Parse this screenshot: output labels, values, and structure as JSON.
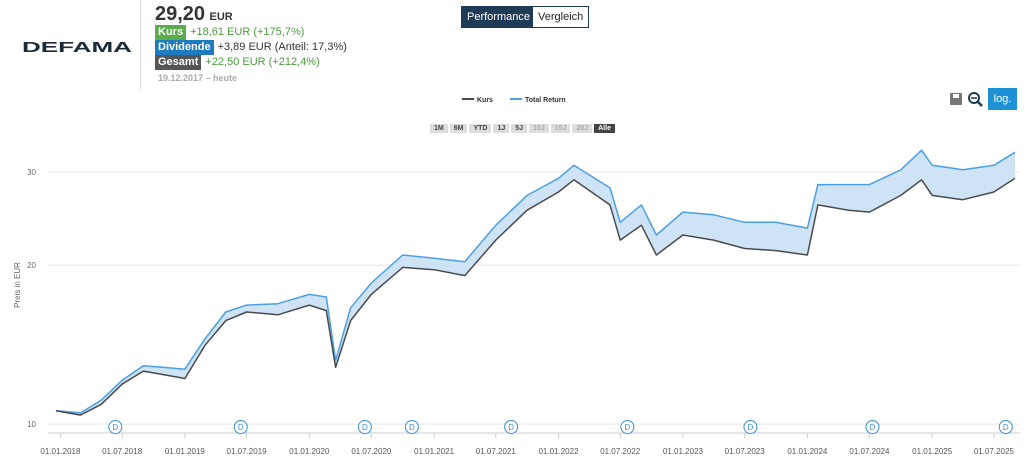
{
  "header": {
    "logo": "DEFAMA",
    "price": "29,20",
    "currency": "EUR",
    "rows": [
      {
        "label": "Kurs",
        "value": "+18,61 EUR (+175,7%)"
      },
      {
        "label": "Dividende",
        "value": "+3,89 EUR (Anteil: 17,3%)"
      },
      {
        "label": "Gesamt",
        "value": "+22,50 EUR (+212,4%)"
      }
    ],
    "period": "19.12.2017 – heute"
  },
  "tabs": [
    "Performance",
    "Vergleich"
  ],
  "ranges": [
    "1M",
    "6M",
    "YTD",
    "1J",
    "5J",
    "10J",
    "15J",
    "20J",
    "Alle"
  ],
  "scale_button": "log.",
  "chart_data": {
    "type": "line",
    "y_label": "Preis in EUR",
    "log_scale": true,
    "grid": true,
    "legend": "top",
    "x": [
      "19.12.2017",
      "01.03.2018",
      "01.05.2018",
      "01.07.2018",
      "01.09.2018",
      "01.11.2018",
      "01.01.2019",
      "01.03.2019",
      "01.05.2019",
      "01.07.2019",
      "01.10.2019",
      "01.01.2020",
      "20.02.2020",
      "18.03.2020",
      "01.05.2020",
      "01.07.2020",
      "01.10.2020",
      "01.01.2021",
      "01.04.2021",
      "01.07.2021",
      "01.10.2021",
      "01.01.2022",
      "15.02.2022",
      "01.06.2022",
      "01.07.2022",
      "01.09.2022",
      "15.10.2022",
      "01.01.2023",
      "01.04.2023",
      "01.07.2023",
      "01.10.2023",
      "01.01.2024",
      "01.02.2024",
      "01.05.2024",
      "01.07.2024",
      "01.10.2024",
      "01.12.2024",
      "01.01.2025",
      "01.04.2025",
      "01.07.2025",
      "01.09.2025"
    ],
    "series": [
      {
        "name": "Kurs",
        "color": "#4a4a4a",
        "values": [
          10.6,
          10.4,
          10.9,
          11.9,
          12.6,
          12.4,
          12.2,
          14.1,
          15.7,
          16.3,
          16.1,
          16.8,
          16.4,
          12.8,
          15.7,
          17.6,
          19.8,
          19.6,
          19.1,
          22.3,
          25.4,
          27.5,
          29.0,
          26.0,
          22.3,
          23.8,
          20.9,
          22.8,
          22.3,
          21.5,
          21.3,
          20.9,
          26.0,
          25.4,
          25.2,
          27.1,
          29.0,
          27.1,
          26.6,
          27.5,
          29.2
        ]
      },
      {
        "name": "Total Return",
        "color": "#4a9fe8",
        "values": [
          10.6,
          10.5,
          11.1,
          12.1,
          12.9,
          12.8,
          12.7,
          14.5,
          16.3,
          16.8,
          16.9,
          17.6,
          17.4,
          13.2,
          16.6,
          18.5,
          20.9,
          20.6,
          20.3,
          23.8,
          27.1,
          29.2,
          30.9,
          28.0,
          24.1,
          26.0,
          22.8,
          25.2,
          24.9,
          24.1,
          24.1,
          23.5,
          28.4,
          28.4,
          28.4,
          30.3,
          33.0,
          30.9,
          30.3,
          30.9,
          32.7
        ]
      }
    ],
    "ylim": [
      9.66,
      34.5
    ],
    "yticks": [
      10,
      20,
      30
    ],
    "xlim": [
      "19.12.2017",
      "01.09.2025"
    ],
    "xticks": [
      "01.01.2018",
      "01.07.2018",
      "01.01.2019",
      "01.07.2019",
      "01.01.2020",
      "01.07.2020",
      "01.01.2021",
      "01.07.2021",
      "01.01.2022",
      "01.07.2022",
      "01.01.2023",
      "01.07.2023",
      "01.01.2024",
      "01.07.2024",
      "01.01.2025",
      "01.07.2025"
    ],
    "dividends": {
      "label": "D",
      "x": [
        "11.06.2018",
        "14.06.2019",
        "12.06.2020",
        "28.10.2020",
        "15.08.2021",
        "22.07.2022",
        "18.07.2023",
        "10.07.2024",
        "05.08.2025"
      ]
    }
  }
}
